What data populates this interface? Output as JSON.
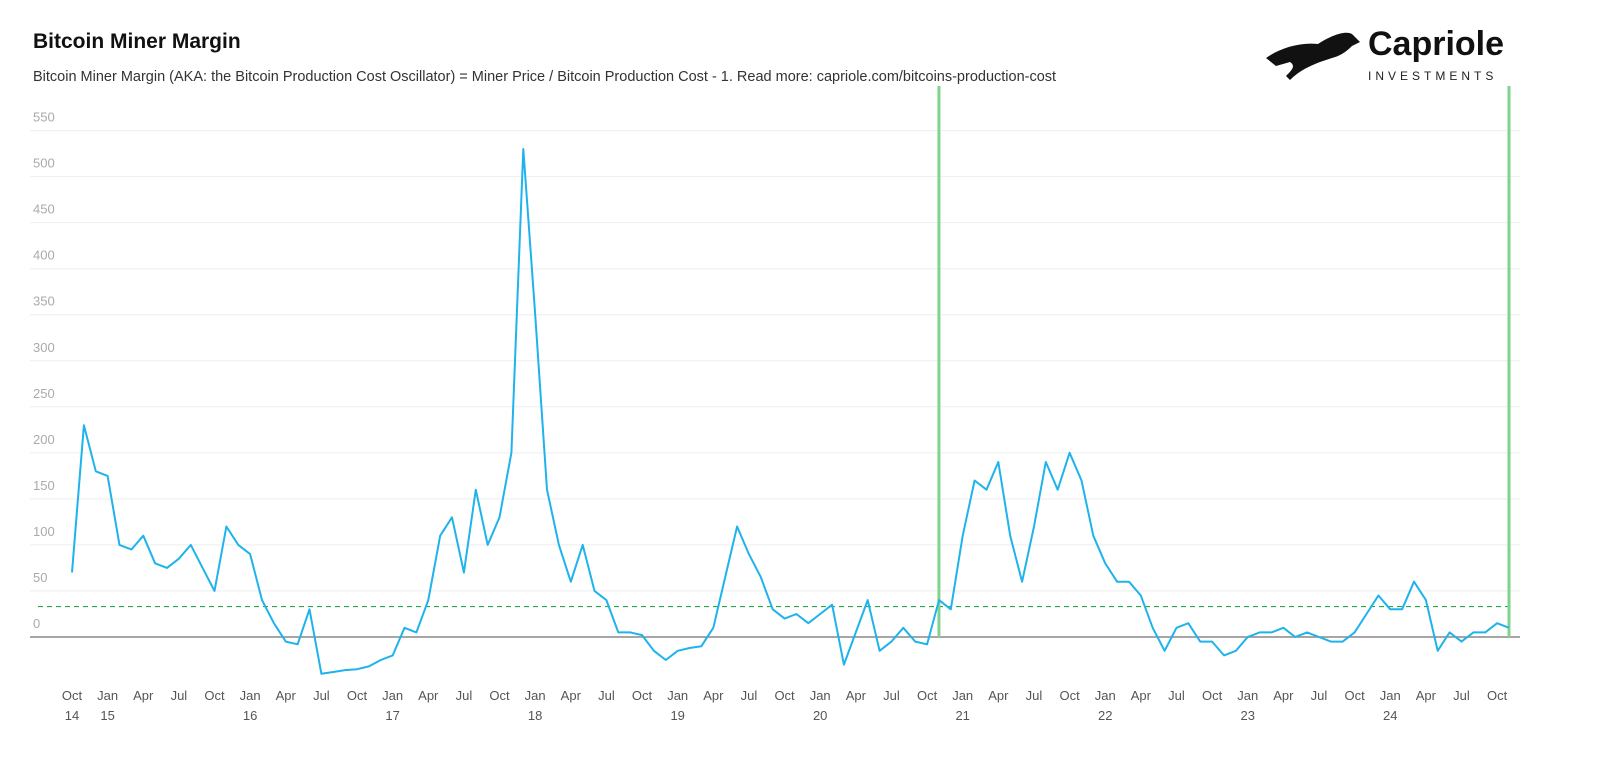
{
  "chart_data": {
    "type": "line",
    "title": "Bitcoin Miner Margin",
    "subtitle": "Bitcoin Miner Margin (AKA: the Bitcoin Production Cost Oscillator) = Miner Price / Bitcoin Production Cost - 1. Read more: capriole.com/bitcoins-production-cost",
    "brand": {
      "name": "Capriole",
      "tagline": "INVESTMENTS"
    },
    "x": [
      "2014-10",
      "2014-11",
      "2014-12",
      "2015-01",
      "2015-02",
      "2015-03",
      "2015-04",
      "2015-05",
      "2015-06",
      "2015-07",
      "2015-08",
      "2015-09",
      "2015-10",
      "2015-11",
      "2015-12",
      "2016-01",
      "2016-02",
      "2016-03",
      "2016-04",
      "2016-05",
      "2016-06",
      "2016-07",
      "2016-08",
      "2016-09",
      "2016-10",
      "2016-11",
      "2016-12",
      "2017-01",
      "2017-02",
      "2017-03",
      "2017-04",
      "2017-05",
      "2017-06",
      "2017-07",
      "2017-08",
      "2017-09",
      "2017-10",
      "2017-11",
      "2017-12",
      "2018-01",
      "2018-02",
      "2018-03",
      "2018-04",
      "2018-05",
      "2018-06",
      "2018-07",
      "2018-08",
      "2018-09",
      "2018-10",
      "2018-11",
      "2018-12",
      "2019-01",
      "2019-02",
      "2019-03",
      "2019-04",
      "2019-05",
      "2019-06",
      "2019-07",
      "2019-08",
      "2019-09",
      "2019-10",
      "2019-11",
      "2019-12",
      "2020-01",
      "2020-02",
      "2020-03",
      "2020-04",
      "2020-05",
      "2020-06",
      "2020-07",
      "2020-08",
      "2020-09",
      "2020-10",
      "2020-11",
      "2020-12",
      "2021-01",
      "2021-02",
      "2021-03",
      "2021-04",
      "2021-05",
      "2021-06",
      "2021-07",
      "2021-08",
      "2021-09",
      "2021-10",
      "2021-11",
      "2021-12",
      "2022-01",
      "2022-02",
      "2022-03",
      "2022-04",
      "2022-05",
      "2022-06",
      "2022-07",
      "2022-08",
      "2022-09",
      "2022-10",
      "2022-11",
      "2022-12",
      "2023-01",
      "2023-02",
      "2023-03",
      "2023-04",
      "2023-05",
      "2023-06",
      "2023-07",
      "2023-08",
      "2023-09",
      "2023-10",
      "2023-11",
      "2023-12",
      "2024-01",
      "2024-02",
      "2024-03",
      "2024-04",
      "2024-05",
      "2024-06",
      "2024-07",
      "2024-08",
      "2024-09",
      "2024-10",
      "2024-11"
    ],
    "series": [
      {
        "name": "Bitcoin Miner Margin",
        "color": "#1fb3ec",
        "values": [
          70,
          230,
          180,
          175,
          100,
          95,
          110,
          80,
          75,
          85,
          100,
          75,
          50,
          120,
          100,
          90,
          40,
          15,
          -5,
          -8,
          30,
          -40,
          -38,
          -36,
          -35,
          -32,
          -25,
          -20,
          10,
          5,
          40,
          110,
          130,
          70,
          160,
          100,
          130,
          200,
          530,
          350,
          160,
          100,
          60,
          100,
          50,
          40,
          5,
          5,
          2,
          -15,
          -25,
          -15,
          -12,
          -10,
          10,
          65,
          120,
          90,
          65,
          30,
          20,
          25,
          15,
          25,
          35,
          -30,
          5,
          40,
          -15,
          -5,
          10,
          -5,
          -8,
          40,
          30,
          110,
          170,
          160,
          190,
          110,
          60,
          120,
          190,
          160,
          200,
          170,
          110,
          80,
          60,
          60,
          45,
          10,
          -15,
          10,
          15,
          -5,
          -5,
          -20,
          -15,
          0,
          5,
          5,
          10,
          0,
          5,
          0,
          -5,
          -5,
          5,
          25,
          45,
          30,
          30,
          60,
          40,
          -15,
          5,
          -5,
          5,
          5,
          15,
          10
        ]
      }
    ],
    "hline": {
      "value": 33,
      "color": "#2aa84a"
    },
    "vlines": {
      "x": [
        "2020-11",
        "2024-11"
      ],
      "color": "#7fd38c"
    },
    "xlim": [
      "2014-10",
      "2024-11"
    ],
    "ylim": [
      -50,
      580
    ],
    "yticks": [
      0,
      50,
      100,
      150,
      200,
      250,
      300,
      350,
      400,
      450,
      500,
      550
    ],
    "xticks": [
      {
        "value": "2014-10",
        "label": "Oct",
        "year": "14"
      },
      {
        "value": "2015-01",
        "label": "Jan",
        "year": "15"
      },
      {
        "value": "2015-04",
        "label": "Apr"
      },
      {
        "value": "2015-07",
        "label": "Jul"
      },
      {
        "value": "2015-10",
        "label": "Oct"
      },
      {
        "value": "2016-01",
        "label": "Jan",
        "year": "16"
      },
      {
        "value": "2016-04",
        "label": "Apr"
      },
      {
        "value": "2016-07",
        "label": "Jul"
      },
      {
        "value": "2016-10",
        "label": "Oct"
      },
      {
        "value": "2017-01",
        "label": "Jan",
        "year": "17"
      },
      {
        "value": "2017-04",
        "label": "Apr"
      },
      {
        "value": "2017-07",
        "label": "Jul"
      },
      {
        "value": "2017-10",
        "label": "Oct"
      },
      {
        "value": "2018-01",
        "label": "Jan",
        "year": "18"
      },
      {
        "value": "2018-04",
        "label": "Apr"
      },
      {
        "value": "2018-07",
        "label": "Jul"
      },
      {
        "value": "2018-10",
        "label": "Oct"
      },
      {
        "value": "2019-01",
        "label": "Jan",
        "year": "19"
      },
      {
        "value": "2019-04",
        "label": "Apr"
      },
      {
        "value": "2019-07",
        "label": "Jul"
      },
      {
        "value": "2019-10",
        "label": "Oct"
      },
      {
        "value": "2020-01",
        "label": "Jan",
        "year": "20"
      },
      {
        "value": "2020-04",
        "label": "Apr"
      },
      {
        "value": "2020-07",
        "label": "Jul"
      },
      {
        "value": "2020-10",
        "label": "Oct"
      },
      {
        "value": "2021-01",
        "label": "Jan",
        "year": "21"
      },
      {
        "value": "2021-04",
        "label": "Apr"
      },
      {
        "value": "2021-07",
        "label": "Jul"
      },
      {
        "value": "2021-10",
        "label": "Oct"
      },
      {
        "value": "2022-01",
        "label": "Jan",
        "year": "22"
      },
      {
        "value": "2022-04",
        "label": "Apr"
      },
      {
        "value": "2022-07",
        "label": "Jul"
      },
      {
        "value": "2022-10",
        "label": "Oct"
      },
      {
        "value": "2023-01",
        "label": "Jan",
        "year": "23"
      },
      {
        "value": "2023-04",
        "label": "Apr"
      },
      {
        "value": "2023-07",
        "label": "Jul"
      },
      {
        "value": "2023-10",
        "label": "Oct"
      },
      {
        "value": "2024-01",
        "label": "Jan",
        "year": "24"
      },
      {
        "value": "2024-04",
        "label": "Apr"
      },
      {
        "value": "2024-07",
        "label": "Jul"
      },
      {
        "value": "2024-10",
        "label": "Oct"
      }
    ],
    "grid": true
  }
}
